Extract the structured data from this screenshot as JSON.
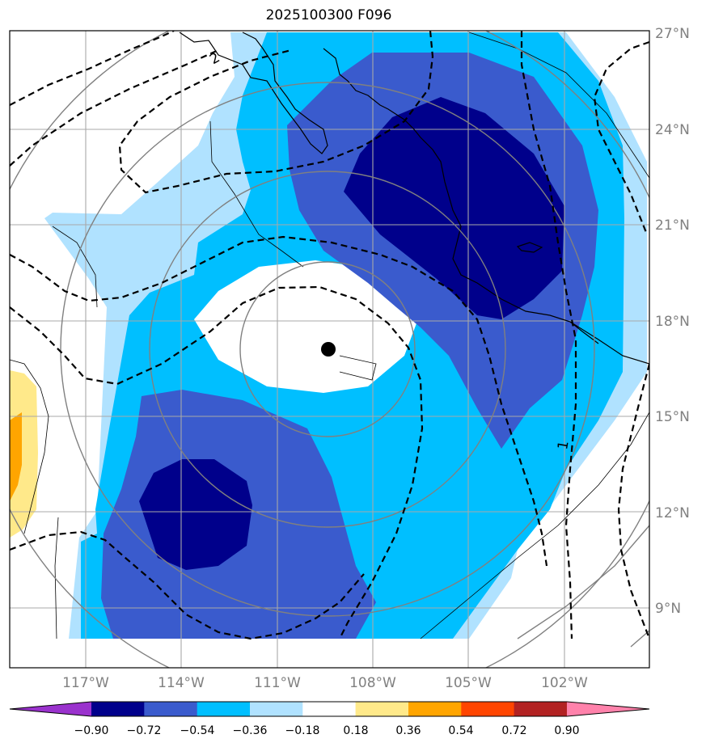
{
  "title": "2025100300 F096",
  "map": {
    "lon_labels": [
      "117°W",
      "114°W",
      "111°W",
      "108°W",
      "105°W",
      "102°W"
    ],
    "lat_labels": [
      "9°N",
      "12°N",
      "15°N",
      "18°N",
      "21°N",
      "24°N",
      "27°N"
    ],
    "contour_labels": [
      "2",
      "1"
    ],
    "storm_marker": "storm-center"
  },
  "colorbar": {
    "ticks": [
      "−0.90",
      "−0.72",
      "−0.54",
      "−0.36",
      "−0.18",
      "0.18",
      "0.36",
      "0.54",
      "0.72",
      "0.90"
    ],
    "colors": [
      "#9a32cd",
      "#00008b",
      "#3a5bcd",
      "#00bfff",
      "#b0e2ff",
      "#ffffff",
      "#ffe98a",
      "#ffa500",
      "#ff4500",
      "#b22222",
      "#ff82ab"
    ]
  }
}
